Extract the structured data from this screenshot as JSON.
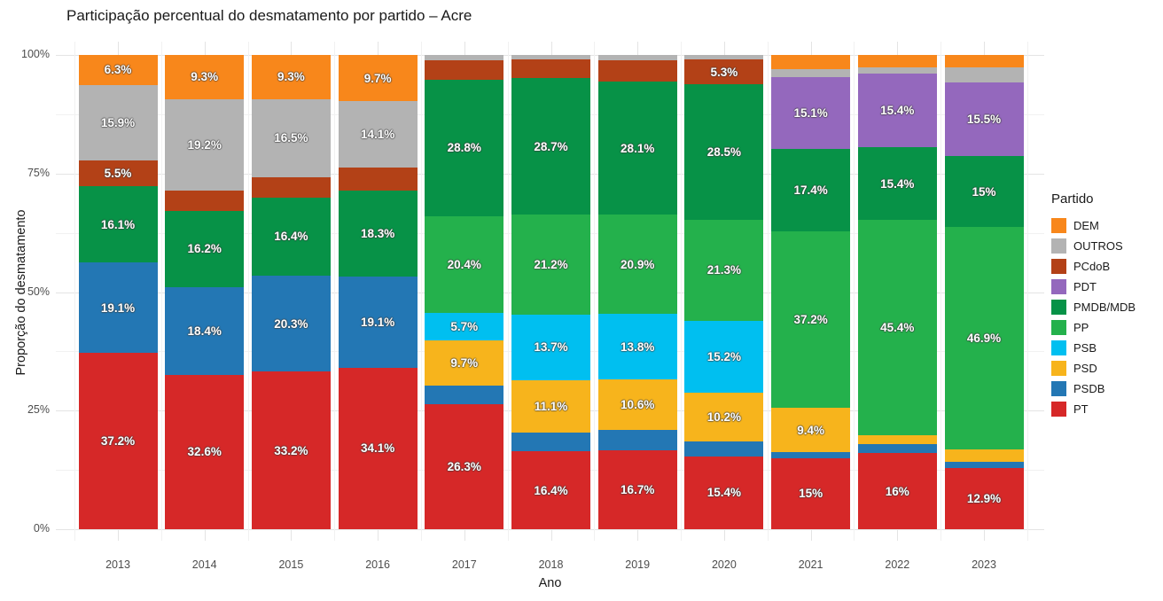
{
  "chart_data": {
    "type": "bar",
    "stacked": true,
    "stack_unit": "percent",
    "title": "Participação percentual do desmatamento por partido – Acre",
    "xlabel": "Ano",
    "ylabel": "Proporção do desmatamento",
    "ylim": [
      0,
      100
    ],
    "yticks": [
      {
        "value": 0,
        "label": "0%"
      },
      {
        "value": 25,
        "label": "25%"
      },
      {
        "value": 50,
        "label": "50%"
      },
      {
        "value": 75,
        "label": "75%"
      },
      {
        "value": 100,
        "label": "100%"
      }
    ],
    "yticks_minor": [
      12.5,
      37.5,
      62.5,
      87.5
    ],
    "grid": true,
    "legend_title": "Partido",
    "legend_position": "right",
    "categories": [
      "2013",
      "2014",
      "2015",
      "2016",
      "2017",
      "2018",
      "2019",
      "2020",
      "2021",
      "2022",
      "2023"
    ],
    "stack_order_bottom_to_top": [
      "PT",
      "PSDB",
      "PSD",
      "PSB",
      "PP",
      "PMDB/MDB",
      "PDT",
      "PCdoB",
      "OUTROS",
      "DEM"
    ],
    "series": [
      {
        "name": "DEM",
        "color": "#F8871B",
        "values": [
          6.3,
          9.3,
          9.3,
          9.7,
          0,
          0,
          0,
          0,
          3.0,
          2.6,
          2.6
        ],
        "labels": [
          "6.3%",
          "9.3%",
          "9.3%",
          "9.7%",
          null,
          null,
          null,
          null,
          null,
          null,
          null
        ]
      },
      {
        "name": "OUTROS",
        "color": "#B3B3B3",
        "values": [
          15.9,
          19.2,
          16.5,
          14.1,
          1.2,
          0.9,
          1.1,
          0.9,
          1.7,
          1.4,
          3.2
        ],
        "labels": [
          "15.9%",
          "19.2%",
          "16.5%",
          "14.1%",
          null,
          null,
          null,
          null,
          null,
          null,
          null
        ]
      },
      {
        "name": "PCdoB",
        "color": "#B34117",
        "values": [
          5.5,
          4.3,
          4.3,
          4.7,
          4.0,
          4.0,
          4.5,
          5.3,
          0,
          0,
          0
        ],
        "labels": [
          "5.5%",
          null,
          null,
          null,
          null,
          null,
          null,
          "5.3%",
          null,
          null,
          null
        ]
      },
      {
        "name": "PDT",
        "color": "#9468BD",
        "values": [
          0,
          0,
          0,
          0,
          0,
          0,
          0,
          0,
          15.1,
          15.4,
          15.5
        ],
        "labels": [
          null,
          null,
          null,
          null,
          null,
          null,
          null,
          null,
          "15.1%",
          "15.4%",
          "15.5%"
        ]
      },
      {
        "name": "PMDB/MDB",
        "color": "#079247",
        "values": [
          16.1,
          16.2,
          16.4,
          18.3,
          28.8,
          28.7,
          28.1,
          28.5,
          17.4,
          15.4,
          15.0
        ],
        "labels": [
          "16.1%",
          "16.2%",
          "16.4%",
          "18.3%",
          "28.8%",
          "28.7%",
          "28.1%",
          "28.5%",
          "17.4%",
          "15.4%",
          "15%"
        ]
      },
      {
        "name": "PP",
        "color": "#24B14C",
        "values": [
          0,
          0,
          0,
          0,
          20.4,
          21.2,
          20.9,
          21.3,
          37.2,
          45.4,
          46.9
        ],
        "labels": [
          null,
          null,
          null,
          null,
          "20.4%",
          "21.2%",
          "20.9%",
          "21.3%",
          "37.2%",
          "45.4%",
          "46.9%"
        ]
      },
      {
        "name": "PSB",
        "color": "#00BFF0",
        "values": [
          0,
          0,
          0,
          0,
          5.7,
          13.7,
          13.8,
          15.2,
          0,
          0,
          0
        ],
        "labels": [
          null,
          null,
          null,
          null,
          "5.7%",
          "13.7%",
          "13.8%",
          "15.2%",
          null,
          null,
          null
        ]
      },
      {
        "name": "PSD",
        "color": "#F7B41C",
        "values": [
          0,
          0,
          0,
          0,
          9.7,
          11.1,
          10.6,
          10.2,
          9.4,
          1.9,
          2.5
        ],
        "labels": [
          null,
          null,
          null,
          null,
          "9.7%",
          "11.1%",
          "10.6%",
          "10.2%",
          "9.4%",
          null,
          null
        ]
      },
      {
        "name": "PSDB",
        "color": "#2377B4",
        "values": [
          19.1,
          18.4,
          20.3,
          19.1,
          3.9,
          4.0,
          4.3,
          3.2,
          1.2,
          1.9,
          1.4
        ],
        "labels": [
          "19.1%",
          "18.4%",
          "20.3%",
          "19.1%",
          null,
          null,
          null,
          null,
          null,
          null,
          null
        ]
      },
      {
        "name": "PT",
        "color": "#D62828",
        "values": [
          37.2,
          32.6,
          33.2,
          34.1,
          26.3,
          16.4,
          16.7,
          15.4,
          15.0,
          16.0,
          12.9
        ],
        "labels": [
          "37.2%",
          "32.6%",
          "33.2%",
          "34.1%",
          "26.3%",
          "16.4%",
          "16.7%",
          "15.4%",
          "15%",
          "16%",
          "12.9%"
        ]
      }
    ]
  }
}
